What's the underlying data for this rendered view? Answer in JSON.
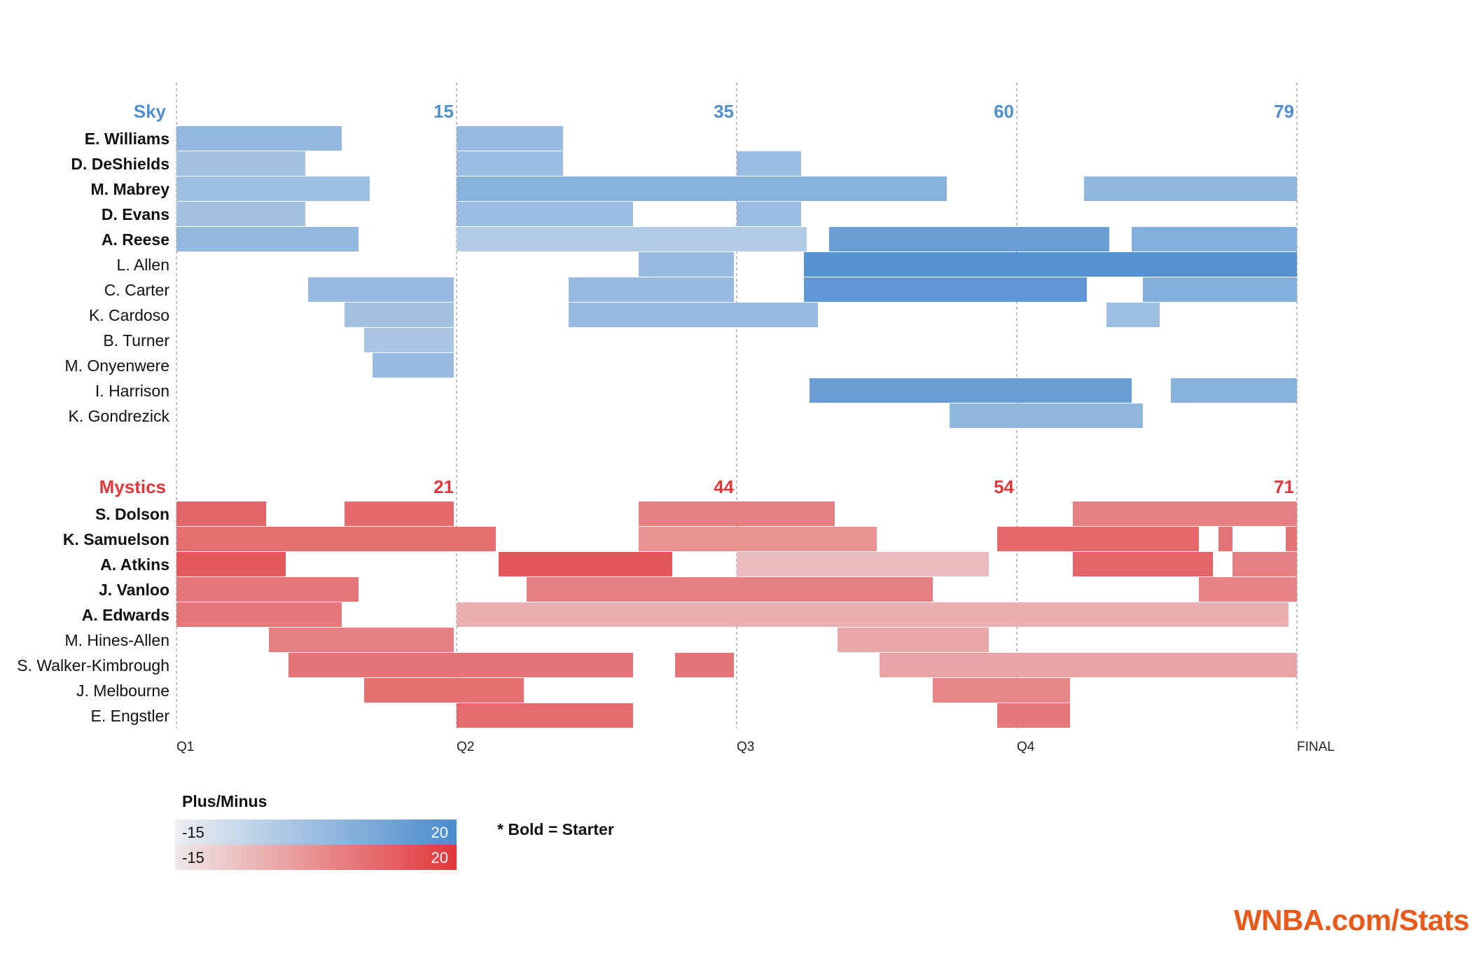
{
  "chart_data": {
    "type": "gantt-timeline",
    "x_axis": {
      "unit": "game minutes",
      "range": [
        0,
        40
      ],
      "ticks": [
        {
          "label": "Q1",
          "minute": 0
        },
        {
          "label": "Q2",
          "minute": 10
        },
        {
          "label": "Q3",
          "minute": 20
        },
        {
          "label": "Q4",
          "minute": 30
        },
        {
          "label": "FINAL",
          "minute": 40
        }
      ]
    },
    "color_scale": {
      "label": "Plus/Minus",
      "min": -15,
      "max": 20
    },
    "teams": [
      {
        "name": "Sky",
        "color": "#4f8fcf",
        "light_color": "#eceef2",
        "quarter_scores": [
          {
            "minute": 10,
            "score": 15
          },
          {
            "minute": 20,
            "score": 35
          },
          {
            "minute": 30,
            "score": 60
          },
          {
            "minute": 40,
            "score": 79
          }
        ],
        "players": [
          {
            "name": "E. Williams",
            "starter": true,
            "stints": [
              [
                0,
                5.9,
                0
              ],
              [
                10,
                13.8,
                -1
              ]
            ]
          },
          {
            "name": "D. DeShields",
            "starter": true,
            "stints": [
              [
                0,
                4.6,
                -5
              ],
              [
                10,
                13.8,
                -2
              ],
              [
                20,
                22.3,
                -2
              ]
            ]
          },
          {
            "name": "M. Mabrey",
            "starter": true,
            "stints": [
              [
                0,
                6.9,
                -4
              ],
              [
                10,
                27.5,
                3
              ],
              [
                32.4,
                40,
                1
              ]
            ]
          },
          {
            "name": "D. Evans",
            "starter": true,
            "stints": [
              [
                0,
                4.6,
                -5
              ],
              [
                10,
                16.3,
                -2
              ],
              [
                20,
                22.3,
                -2
              ]
            ]
          },
          {
            "name": "A. Reese",
            "starter": true,
            "stints": [
              [
                0,
                6.5,
                0
              ],
              [
                10,
                22.5,
                -9
              ],
              [
                23.3,
                33.3,
                12
              ],
              [
                34.1,
                40,
                4
              ]
            ]
          },
          {
            "name": "L. Allen",
            "starter": false,
            "stints": [
              [
                16.5,
                19.9,
                -1
              ],
              [
                22.4,
                40,
                18
              ]
            ]
          },
          {
            "name": "C. Carter",
            "starter": false,
            "stints": [
              [
                4.7,
                9.9,
                -1
              ],
              [
                14,
                19.9,
                -1
              ],
              [
                22.4,
                32.5,
                15
              ],
              [
                34.5,
                40,
                4
              ]
            ]
          },
          {
            "name": "K. Cardoso",
            "starter": false,
            "stints": [
              [
                6,
                9.9,
                -5
              ],
              [
                14,
                22.9,
                -1
              ],
              [
                33.2,
                35.1,
                -3
              ]
            ]
          },
          {
            "name": "B. Turner",
            "starter": false,
            "stints": [
              [
                6.7,
                9.9,
                -7
              ]
            ]
          },
          {
            "name": "M. Onyenwere",
            "starter": false,
            "stints": [
              [
                7,
                9.9,
                -1
              ]
            ]
          },
          {
            "name": "I. Harrison",
            "starter": false,
            "stints": [
              [
                22.6,
                34.1,
                12
              ],
              [
                35.5,
                40,
                3
              ]
            ]
          },
          {
            "name": "K. Gondrezick",
            "starter": false,
            "stints": [
              [
                27.6,
                34.5,
                1
              ]
            ]
          }
        ]
      },
      {
        "name": "Mystics",
        "color": "#e1373a",
        "light_color": "#eee8e8",
        "quarter_scores": [
          {
            "minute": 10,
            "score": 21
          },
          {
            "minute": 20,
            "score": 44
          },
          {
            "minute": 30,
            "score": 54
          },
          {
            "minute": 40,
            "score": 71
          }
        ],
        "players": [
          {
            "name": "S. Dolson",
            "starter": true,
            "stints": [
              [
                0,
                3.2,
                8
              ],
              [
                6,
                9.9,
                7
              ],
              [
                16.5,
                23.5,
                1
              ],
              [
                32,
                40,
                1
              ]
            ]
          },
          {
            "name": "K. Samuelson",
            "starter": true,
            "stints": [
              [
                0,
                11.4,
                5
              ],
              [
                16.5,
                25,
                -4
              ],
              [
                29.3,
                36.5,
                7
              ],
              [
                37.2,
                37.7,
                4
              ],
              [
                39.6,
                40,
                4
              ]
            ]
          },
          {
            "name": "A. Atkins",
            "starter": true,
            "stints": [
              [
                0,
                3.9,
                11
              ],
              [
                11.5,
                17.7,
                12
              ],
              [
                20,
                29,
                -15
              ],
              [
                32,
                37,
                8
              ],
              [
                37.7,
                40,
                1
              ]
            ]
          },
          {
            "name": "J. Vanloo",
            "starter": true,
            "stints": [
              [
                0,
                6.5,
                3
              ],
              [
                12.5,
                27,
                1
              ],
              [
                36.5,
                40,
                0
              ]
            ]
          },
          {
            "name": "A. Edwards",
            "starter": true,
            "stints": [
              [
                0,
                5.9,
                3
              ],
              [
                10,
                39.7,
                -12
              ]
            ]
          },
          {
            "name": "M. Hines-Allen",
            "starter": false,
            "stints": [
              [
                3.3,
                9.9,
                1
              ],
              [
                23.6,
                29,
                -10
              ]
            ]
          },
          {
            "name": "S. Walker-Kimbrough",
            "starter": false,
            "stints": [
              [
                4,
                16.3,
                4
              ],
              [
                17.8,
                19.9,
                4
              ],
              [
                25.1,
                40,
                -9
              ]
            ]
          },
          {
            "name": "J. Melbourne",
            "starter": false,
            "stints": [
              [
                6.7,
                12.4,
                5
              ],
              [
                27,
                31.9,
                -1
              ]
            ]
          },
          {
            "name": "E. Engstler",
            "starter": false,
            "stints": [
              [
                10,
                16.3,
                6
              ],
              [
                29.3,
                31.9,
                3
              ]
            ]
          }
        ]
      }
    ],
    "legend": {
      "title": "Plus/Minus",
      "min_label": "-15",
      "max_label": "20"
    },
    "note": "* Bold = Starter"
  },
  "brand": {
    "text": "WNBA.com/Stats",
    "color": "#e85a1a"
  }
}
